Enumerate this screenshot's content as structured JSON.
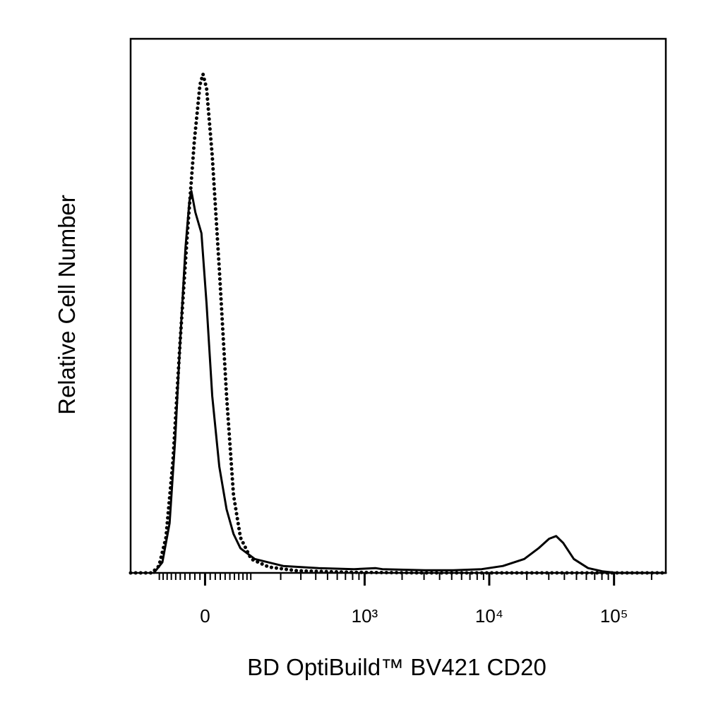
{
  "chart_data": {
    "type": "line",
    "xlabel": "BD OptiBuild™ BV421 CD20",
    "ylabel": "Relative Cell Number",
    "xscale": "biexponential",
    "xlim": [
      -195,
      260000
    ],
    "ylim": [
      0,
      100
    ],
    "xticks": [
      0,
      {
        "value": 1000,
        "label": "10³"
      },
      {
        "value": 10000,
        "label": "10⁴"
      },
      {
        "value": 100000,
        "label": "10⁵"
      }
    ],
    "xminor_ticks": [
      -100,
      -90,
      -80,
      -70,
      -60,
      -50,
      -40,
      -30,
      -20,
      -10,
      10,
      20,
      30,
      40,
      50,
      60,
      70,
      80,
      90,
      100,
      200,
      300,
      400,
      500,
      600,
      700,
      800,
      900,
      2000,
      3000,
      4000,
      5000,
      6000,
      7000,
      8000,
      9000,
      20000,
      30000,
      40000,
      50000,
      60000,
      70000,
      80000,
      90000,
      200000
    ],
    "grid": false,
    "series": [
      {
        "color": "#000000",
        "dash": "solid",
        "x": [
          -115,
          -92,
          -74,
          -61,
          -50,
          -39,
          -31,
          -27,
          -19,
          -7,
          3,
          14,
          28,
          43,
          58,
          74,
          111,
          211,
          422,
          821,
          1219,
          1389,
          3050,
          5150,
          8690,
          12870,
          19070,
          24780,
          30160,
          34370,
          39140,
          47580,
          61900,
          80500,
          104400,
          260000
        ],
        "values": [
          0,
          2,
          9.3,
          25.2,
          43.7,
          60.9,
          69.5,
          71.5,
          67.5,
          63.6,
          50.3,
          33.1,
          19.9,
          11.9,
          7.3,
          4.6,
          2.6,
          1.3,
          0.9,
          0.7,
          0.9,
          0.7,
          0.5,
          0.5,
          0.7,
          1.3,
          2.6,
          4.6,
          6.4,
          6.9,
          5.6,
          2.6,
          0.9,
          0.3,
          0,
          0
        ]
      },
      {
        "color": "#000000",
        "dash": "dotted",
        "x": [
          -195,
          -121,
          -101,
          -83,
          -66,
          -50,
          -35,
          -21,
          -10,
          -4,
          3,
          14,
          28,
          43,
          58,
          74,
          101,
          155,
          280,
          821,
          3050,
          260000
        ],
        "values": [
          0,
          0,
          1.3,
          6.6,
          21.2,
          43.7,
          63.6,
          80.8,
          91.4,
          93.4,
          90.7,
          78.1,
          56.9,
          33.1,
          14.6,
          6.6,
          2.6,
          1.1,
          0.4,
          0.1,
          0,
          0
        ]
      }
    ]
  }
}
